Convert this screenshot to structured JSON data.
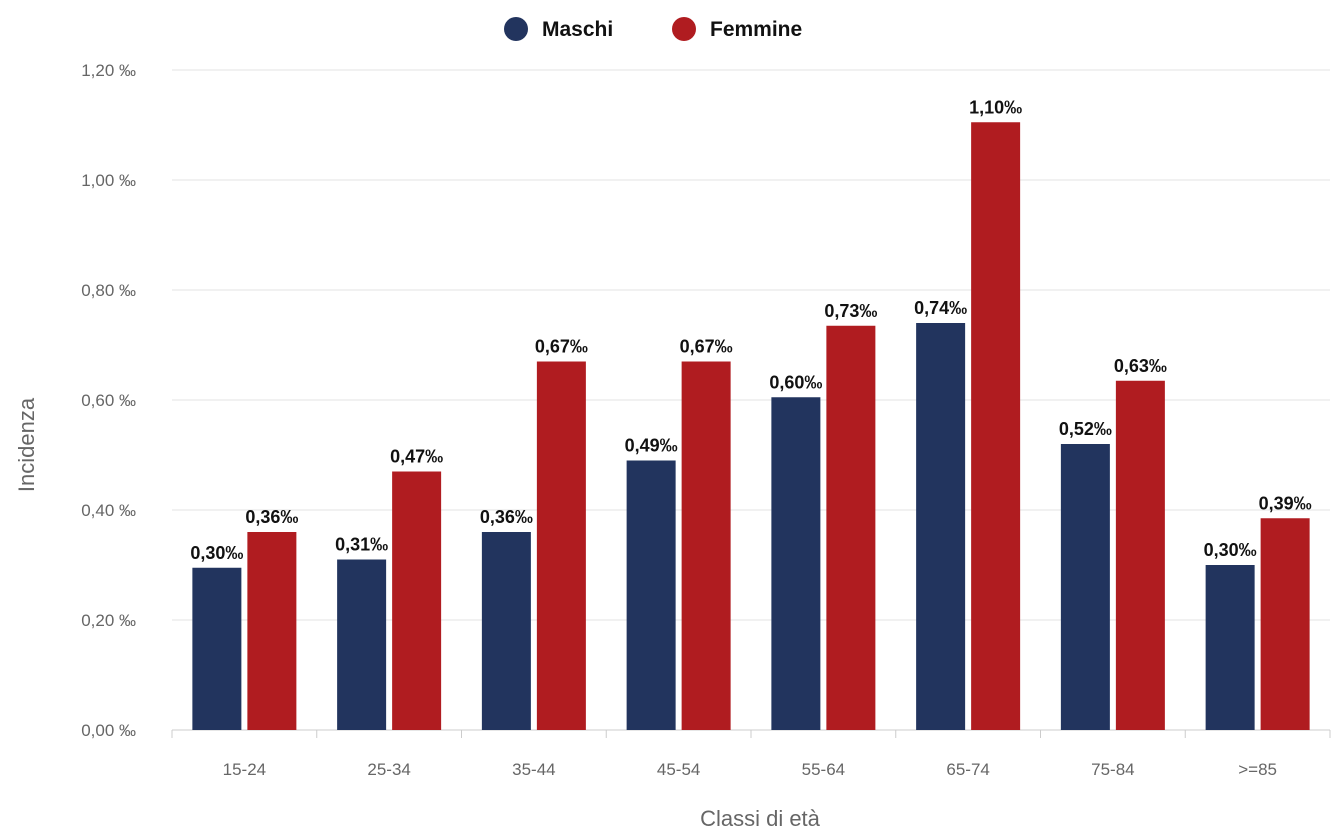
{
  "chart_data": {
    "type": "bar",
    "xlabel": "Classi di età",
    "ylabel": "Incidenza",
    "ylim": [
      0,
      1.2
    ],
    "y_ticks": [
      0,
      0.2,
      0.4,
      0.6,
      0.8,
      1.0,
      1.2
    ],
    "y_tick_labels": [
      "0,00 ‰",
      "0,20 ‰",
      "0,40 ‰",
      "0,60 ‰",
      "0,80 ‰",
      "1,00 ‰",
      "1,20 ‰"
    ],
    "categories": [
      "15-24",
      "25-34",
      "35-44",
      "45-54",
      "55-64",
      "65-74",
      "75-84",
      ">=85"
    ],
    "legend_position": "top-center",
    "grid": true,
    "series": [
      {
        "name": "Maschi",
        "color": "#22345e",
        "values": [
          0.295,
          0.31,
          0.36,
          0.49,
          0.605,
          0.74,
          0.52,
          0.3
        ],
        "labels": [
          "0,30‰",
          "0,31‰",
          "0,36‰",
          "0,49‰",
          "0,60‰",
          "0,74‰",
          "0,52‰",
          "0,30‰"
        ]
      },
      {
        "name": "Femmine",
        "color": "#b01c20",
        "values": [
          0.36,
          0.47,
          0.67,
          0.67,
          0.735,
          1.105,
          0.635,
          0.385
        ],
        "labels": [
          "0,36‰",
          "0,47‰",
          "0,67‰",
          "0,67‰",
          "0,73‰",
          "1,10‰",
          "0,63‰",
          "0,39‰"
        ]
      }
    ]
  }
}
